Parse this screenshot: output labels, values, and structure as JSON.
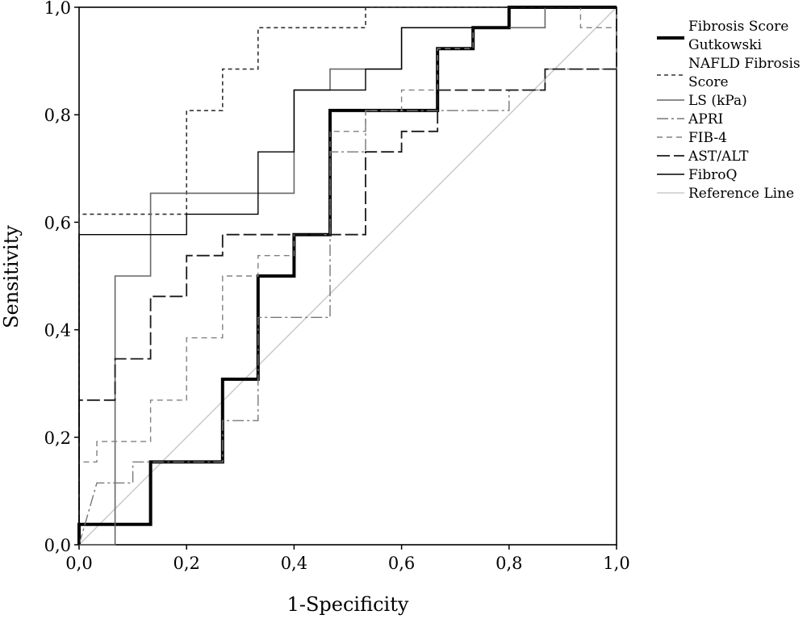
{
  "chart_data": {
    "type": "line",
    "title": "",
    "xlabel": "1-Specificity",
    "ylabel": "Sensitivity",
    "xlim": [
      0,
      1
    ],
    "ylim": [
      0,
      1
    ],
    "x_ticks": [
      "0,0",
      "0,2",
      "0,4",
      "0,6",
      "0,8",
      "1,0"
    ],
    "y_ticks": [
      "0,0",
      "0,2",
      "0,4",
      "0,6",
      "0,8",
      "1,0"
    ],
    "grid": false,
    "legend_position": "right",
    "series": [
      {
        "name": "Fibrosis Score Gutkowski",
        "legend_lines": [
          "Fibrosis Score",
          "Gutkowski"
        ],
        "style": "thick-solid",
        "color": "#000000",
        "points": [
          [
            0,
            0
          ],
          [
            0,
            0.038
          ],
          [
            0.133,
            0.038
          ],
          [
            0.133,
            0.154
          ],
          [
            0.267,
            0.154
          ],
          [
            0.267,
            0.308
          ],
          [
            0.333,
            0.308
          ],
          [
            0.333,
            0.5
          ],
          [
            0.4,
            0.5
          ],
          [
            0.4,
            0.577
          ],
          [
            0.467,
            0.577
          ],
          [
            0.467,
            0.808
          ],
          [
            0.667,
            0.808
          ],
          [
            0.667,
            0.923
          ],
          [
            0.733,
            0.923
          ],
          [
            0.733,
            0.962
          ],
          [
            0.8,
            0.962
          ],
          [
            0.8,
            1
          ],
          [
            1,
            1
          ]
        ]
      },
      {
        "name": "NAFLD Fibrosis Score",
        "legend_lines": [
          "NAFLD Fibrosis",
          "Score"
        ],
        "style": "short-dash",
        "color": "#333333",
        "points": [
          [
            0,
            0
          ],
          [
            0,
            0.615
          ],
          [
            0.2,
            0.615
          ],
          [
            0.2,
            0.808
          ],
          [
            0.267,
            0.808
          ],
          [
            0.267,
            0.885
          ],
          [
            0.333,
            0.885
          ],
          [
            0.333,
            0.962
          ],
          [
            0.533,
            0.962
          ],
          [
            0.533,
            1
          ],
          [
            1,
            1
          ]
        ]
      },
      {
        "name": "LS (kPa)",
        "legend_lines": [
          "LS (kPa)"
        ],
        "style": "solid-grey",
        "color": "#666666",
        "points": [
          [
            0,
            0
          ],
          [
            0.067,
            0
          ],
          [
            0.067,
            0.5
          ],
          [
            0.133,
            0.5
          ],
          [
            0.133,
            0.654
          ],
          [
            0.4,
            0.654
          ],
          [
            0.4,
            0.846
          ],
          [
            0.467,
            0.846
          ],
          [
            0.467,
            0.885
          ],
          [
            0.6,
            0.885
          ],
          [
            0.6,
            0.962
          ],
          [
            0.867,
            0.962
          ],
          [
            0.867,
            1
          ],
          [
            1,
            1
          ]
        ]
      },
      {
        "name": "APRI",
        "legend_lines": [
          "APRI"
        ],
        "style": "dash-dot",
        "color": "#777777",
        "points": [
          [
            0,
            0
          ],
          [
            0.033,
            0.115
          ],
          [
            0.1,
            0.115
          ],
          [
            0.1,
            0.154
          ],
          [
            0.267,
            0.154
          ],
          [
            0.267,
            0.231
          ],
          [
            0.333,
            0.231
          ],
          [
            0.333,
            0.423
          ],
          [
            0.467,
            0.423
          ],
          [
            0.467,
            0.731
          ],
          [
            0.533,
            0.731
          ],
          [
            0.533,
            0.808
          ],
          [
            0.8,
            0.808
          ],
          [
            0.8,
            0.846
          ],
          [
            0.867,
            0.846
          ],
          [
            0.867,
            0.885
          ],
          [
            1,
            0.885
          ],
          [
            1,
            1
          ]
        ]
      },
      {
        "name": "FIB-4",
        "legend_lines": [
          "FIB-4"
        ],
        "style": "dash-grey",
        "color": "#808080",
        "points": [
          [
            0,
            0
          ],
          [
            0,
            0.154
          ],
          [
            0.033,
            0.154
          ],
          [
            0.033,
            0.192
          ],
          [
            0.133,
            0.192
          ],
          [
            0.133,
            0.269
          ],
          [
            0.2,
            0.269
          ],
          [
            0.2,
            0.385
          ],
          [
            0.267,
            0.385
          ],
          [
            0.267,
            0.5
          ],
          [
            0.333,
            0.5
          ],
          [
            0.333,
            0.538
          ],
          [
            0.4,
            0.538
          ],
          [
            0.4,
            0.577
          ],
          [
            0.467,
            0.577
          ],
          [
            0.467,
            0.769
          ],
          [
            0.533,
            0.769
          ],
          [
            0.533,
            0.808
          ],
          [
            0.6,
            0.808
          ],
          [
            0.6,
            0.846
          ],
          [
            0.667,
            0.846
          ],
          [
            0.667,
            0.923
          ],
          [
            0.733,
            0.923
          ],
          [
            0.733,
            0.962
          ],
          [
            0.8,
            0.962
          ],
          [
            0.8,
            1
          ],
          [
            0.933,
            1
          ],
          [
            0.933,
            0.962
          ],
          [
            1,
            0.962
          ],
          [
            1,
            1
          ]
        ]
      },
      {
        "name": "AST/ALT",
        "legend_lines": [
          "AST/ALT"
        ],
        "style": "long-dash",
        "color": "#1a1a1a",
        "points": [
          [
            0,
            0
          ],
          [
            0,
            0.269
          ],
          [
            0.067,
            0.269
          ],
          [
            0.067,
            0.346
          ],
          [
            0.133,
            0.346
          ],
          [
            0.133,
            0.462
          ],
          [
            0.2,
            0.462
          ],
          [
            0.2,
            0.538
          ],
          [
            0.267,
            0.538
          ],
          [
            0.267,
            0.577
          ],
          [
            0.533,
            0.577
          ],
          [
            0.533,
            0.731
          ],
          [
            0.6,
            0.731
          ],
          [
            0.6,
            0.769
          ],
          [
            0.667,
            0.769
          ],
          [
            0.667,
            0.846
          ],
          [
            0.867,
            0.846
          ],
          [
            0.867,
            0.885
          ],
          [
            1,
            0.885
          ],
          [
            1,
            1
          ]
        ]
      },
      {
        "name": "FibroQ",
        "legend_lines": [
          "FibroQ"
        ],
        "style": "solid-thin",
        "color": "#000000",
        "points": [
          [
            0,
            0
          ],
          [
            0,
            0.577
          ],
          [
            0.2,
            0.577
          ],
          [
            0.2,
            0.615
          ],
          [
            0.333,
            0.615
          ],
          [
            0.333,
            0.731
          ],
          [
            0.4,
            0.731
          ],
          [
            0.4,
            0.846
          ],
          [
            0.533,
            0.846
          ],
          [
            0.533,
            0.885
          ],
          [
            0.6,
            0.885
          ],
          [
            0.6,
            0.962
          ],
          [
            0.8,
            0.962
          ],
          [
            0.8,
            1
          ],
          [
            1,
            1
          ]
        ]
      },
      {
        "name": "Reference Line",
        "legend_lines": [
          "Reference Line"
        ],
        "style": "reference",
        "color": "#cccccc",
        "points": [
          [
            0,
            0
          ],
          [
            1,
            1
          ]
        ]
      }
    ]
  }
}
